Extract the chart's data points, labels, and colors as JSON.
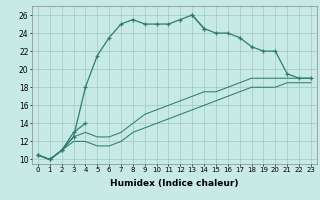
{
  "xlabel": "Humidex (Indice chaleur)",
  "bg_color": "#c8eae6",
  "grid_color": "#a0c8c4",
  "line_color": "#2e7d6e",
  "xlim": [
    -0.5,
    23.5
  ],
  "ylim": [
    9.5,
    27.0
  ],
  "xticks": [
    0,
    1,
    2,
    3,
    4,
    5,
    6,
    7,
    8,
    9,
    10,
    11,
    12,
    13,
    14,
    15,
    16,
    17,
    18,
    19,
    20,
    21,
    22,
    23
  ],
  "yticks": [
    10,
    12,
    14,
    16,
    18,
    20,
    22,
    24,
    26
  ],
  "line1_x": [
    0,
    1,
    2,
    3,
    4,
    5,
    6,
    7,
    8,
    9,
    10,
    11,
    12,
    13,
    14
  ],
  "line1_y": [
    10.5,
    10.0,
    11.0,
    12.5,
    18.0,
    21.5,
    23.5,
    25.0,
    25.5,
    25.0,
    25.0,
    25.0,
    25.5,
    26.0,
    24.5
  ],
  "line2a_x": [
    0,
    1,
    2,
    3,
    4
  ],
  "line2a_y": [
    10.5,
    10.0,
    11.0,
    13.0,
    14.0
  ],
  "line2b_x": [
    13,
    14,
    15,
    16,
    17,
    18,
    19,
    20,
    21,
    22,
    23
  ],
  "line2b_y": [
    26.0,
    24.5,
    24.0,
    24.0,
    23.5,
    22.5,
    22.0,
    22.0,
    19.5,
    19.0,
    19.0
  ],
  "line3_x": [
    0,
    1,
    2,
    3,
    4,
    5,
    6,
    7,
    8,
    9,
    10,
    11,
    12,
    13,
    14,
    15,
    16,
    17,
    18,
    19,
    20,
    21,
    22,
    23
  ],
  "line3_y": [
    10.5,
    10.0,
    11.0,
    12.5,
    13.0,
    12.5,
    12.5,
    13.0,
    14.0,
    15.0,
    15.5,
    16.0,
    16.5,
    17.0,
    17.5,
    17.5,
    18.0,
    18.5,
    19.0,
    19.0,
    19.0,
    19.0,
    19.0,
    19.0
  ],
  "line4_x": [
    0,
    1,
    2,
    3,
    4,
    5,
    6,
    7,
    8,
    9,
    10,
    11,
    12,
    13,
    14,
    15,
    16,
    17,
    18,
    19,
    20,
    21,
    22,
    23
  ],
  "line4_y": [
    10.5,
    10.0,
    11.0,
    12.0,
    12.0,
    11.5,
    11.5,
    12.0,
    13.0,
    13.5,
    14.0,
    14.5,
    15.0,
    15.5,
    16.0,
    16.5,
    17.0,
    17.5,
    18.0,
    18.0,
    18.0,
    18.5,
    18.5,
    18.5
  ]
}
